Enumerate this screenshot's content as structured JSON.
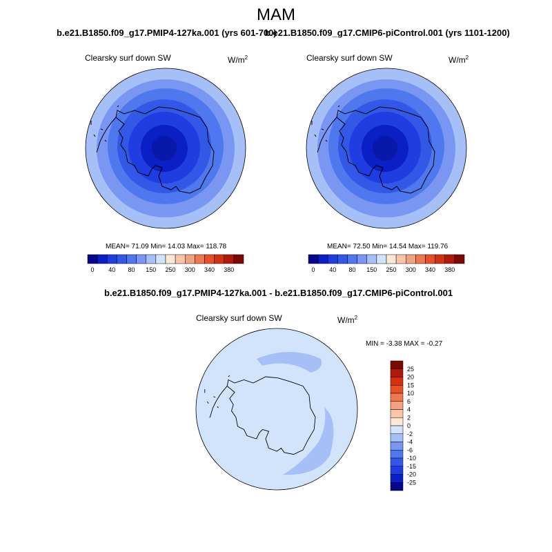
{
  "season": "MAM",
  "panels": [
    {
      "title": "b.e21.B1850.f09_g17.PMIP4-127ka.001 (yrs 601-700)",
      "variable": "Clearsky surf down SW",
      "units": "W/m",
      "units_exp": "2",
      "stats": "MEAN=  71.09  Min=  14.03  Max= 118.78"
    },
    {
      "title": "b.e21.B1850.f09_g17.CMIP6-piControl.001 (yrs 1101-1200)",
      "variable": "Clearsky surf down SW",
      "units": "W/m",
      "units_exp": "2",
      "stats": "MEAN=  72.50  Min=  14.54  Max= 119.76"
    },
    {
      "title": "b.e21.B1850.f09_g17.PMIP4-127ka.001 - b.e21.B1850.f09_g17.CMIP6-piControl.001",
      "variable": "Clearsky surf down SW",
      "units": "W/m",
      "units_exp": "2",
      "stats": "MIN =  -3.38 MAX =  -0.27"
    }
  ],
  "colorbar_top": {
    "colors": [
      "#08088c",
      "#0a1fc4",
      "#1f3de0",
      "#3358e8",
      "#5078ee",
      "#7896f2",
      "#a6bff7",
      "#d2e4fb",
      "#fde8d4",
      "#f9c6a8",
      "#f4a180",
      "#ef7850",
      "#e85028",
      "#d42f10",
      "#b01808",
      "#7d0800"
    ],
    "labels": [
      "0",
      "40",
      "80",
      "150",
      "250",
      "300",
      "340",
      "380"
    ]
  },
  "colorbar_diff": {
    "colors": [
      "#08088c",
      "#0a1fc4",
      "#1f3de0",
      "#3358e8",
      "#5078ee",
      "#7896f2",
      "#a6bff7",
      "#d2e4fb",
      "#fde8d4",
      "#f9c6a8",
      "#f4a180",
      "#ef7850",
      "#e85028",
      "#d42f10",
      "#b01808",
      "#7d0800"
    ],
    "labels": [
      "25",
      "20",
      "15",
      "10",
      "6",
      "4",
      "2",
      "0",
      "-2",
      "-4",
      "-6",
      "-10",
      "-15",
      "-20",
      "-25"
    ]
  },
  "map_colors": {
    "ring1": "#a6bff7",
    "ring2": "#7896f2",
    "ring3": "#5078ee",
    "ring4": "#3358e8",
    "ring5": "#1f3de0",
    "ring6": "#0a1fc4",
    "center": "#0818a8",
    "diff_bg": "#d2e4fb",
    "diff_band": "#a6bff7",
    "coast": "#000000"
  }
}
